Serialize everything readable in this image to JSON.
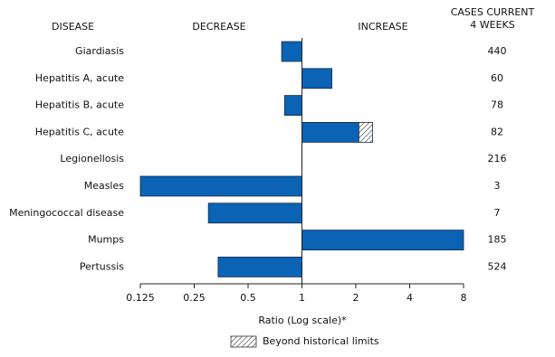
{
  "chart_data": {
    "type": "bar",
    "orientation": "horizontal",
    "category_header": "DISEASE",
    "decrease_label": "DECREASE",
    "increase_label": "INCREASE",
    "cases_header": [
      "CASES CURRENT",
      "4 WEEKS"
    ],
    "categories": [
      "Giardiasis",
      "Hepatitis A, acute",
      "Hepatitis B, acute",
      "Hepatitis C, acute",
      "Legionellosis",
      "Measles",
      "Meningococcal disease",
      "Mumps",
      "Pertussis"
    ],
    "values": [
      0.77,
      1.47,
      0.8,
      2.48,
      1,
      0.125,
      0.3,
      8,
      0.34
    ],
    "historical_limits": [
      null,
      null,
      null,
      2.08,
      null,
      null,
      null,
      null,
      null
    ],
    "cases": [
      440,
      60,
      78,
      82,
      216,
      3,
      7,
      185,
      524
    ],
    "color": "#0b63b5",
    "hatch_color": "#333333",
    "xscale": "log",
    "xlim": [
      0.125,
      8
    ],
    "xticks": [
      0.125,
      0.25,
      0.5,
      1,
      2,
      4,
      8
    ],
    "xlabel": "Ratio (Log scale)*",
    "legend": {
      "label": "Beyond historical limits",
      "position": "bottom"
    }
  }
}
